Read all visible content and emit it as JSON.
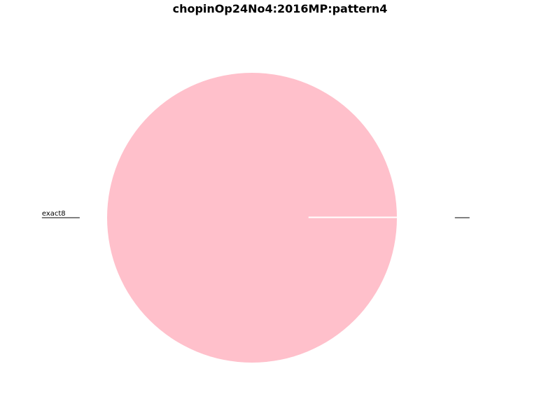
{
  "chart_data": {
    "type": "pie",
    "title": "chopinOp24No4:2016MP:pattern4",
    "slices": [
      {
        "label": "exact8",
        "value": 1.0,
        "color": "#ffc0cb"
      },
      {
        "label": "",
        "value": 0.0,
        "color": "#ffc0cb"
      }
    ],
    "legend": "none",
    "edge_color": "#ffffff"
  }
}
